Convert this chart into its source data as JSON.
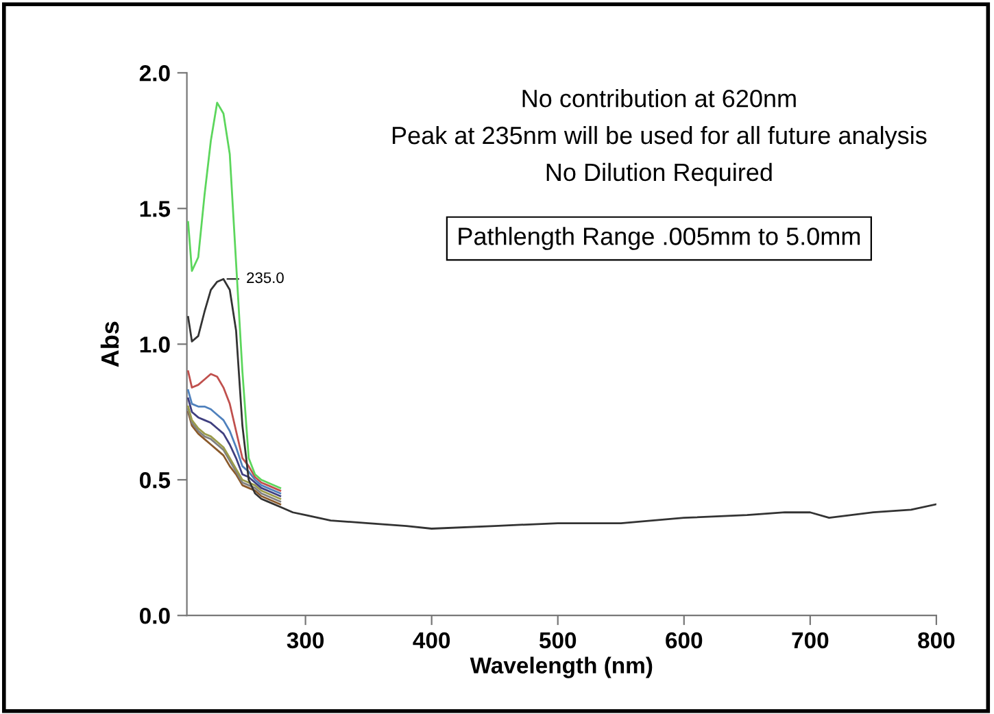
{
  "chart_data": {
    "type": "line",
    "xlabel": "Wavelength (nm)",
    "ylabel": "Abs",
    "x": [
      207,
      210,
      215,
      220,
      225,
      230,
      235,
      240,
      245,
      250,
      255,
      260,
      265,
      270,
      280,
      290,
      300,
      320,
      350,
      380,
      400,
      450,
      500,
      550,
      600,
      650,
      680,
      700,
      715,
      750,
      780,
      800
    ],
    "series": [
      {
        "color": "#5cd65c",
        "values": [
          1.45,
          1.27,
          1.32,
          1.55,
          1.75,
          1.89,
          1.85,
          1.7,
          1.3,
          0.9,
          0.58,
          0.52,
          0.5,
          0.49,
          0.47,
          null,
          null,
          null,
          null,
          null,
          null,
          null,
          null,
          null,
          null,
          null,
          null,
          null,
          null,
          null,
          null,
          null
        ]
      },
      {
        "color": "#333333",
        "values": [
          1.1,
          1.01,
          1.03,
          1.12,
          1.2,
          1.23,
          1.24,
          1.2,
          1.05,
          0.7,
          0.5,
          0.45,
          0.43,
          0.42,
          0.4,
          0.38,
          0.37,
          0.35,
          0.34,
          0.33,
          0.32,
          0.33,
          0.34,
          0.34,
          0.36,
          0.37,
          0.38,
          0.38,
          0.36,
          0.38,
          0.39,
          0.41
        ]
      },
      {
        "color": "#c0504d",
        "values": [
          0.9,
          0.84,
          0.85,
          0.87,
          0.89,
          0.88,
          0.84,
          0.78,
          0.68,
          0.58,
          0.55,
          0.51,
          0.49,
          0.48,
          0.46,
          null,
          null,
          null,
          null,
          null,
          null,
          null,
          null,
          null,
          null,
          null,
          null,
          null,
          null,
          null,
          null,
          null
        ]
      },
      {
        "color": "#4f81bd",
        "values": [
          0.83,
          0.78,
          0.77,
          0.77,
          0.76,
          0.74,
          0.72,
          0.68,
          0.62,
          0.55,
          0.53,
          0.5,
          0.48,
          0.47,
          0.45,
          null,
          null,
          null,
          null,
          null,
          null,
          null,
          null,
          null,
          null,
          null,
          null,
          null,
          null,
          null,
          null,
          null
        ]
      },
      {
        "color": "#3f3f7f",
        "values": [
          0.8,
          0.75,
          0.73,
          0.72,
          0.71,
          0.69,
          0.67,
          0.63,
          0.58,
          0.52,
          0.51,
          0.49,
          0.47,
          0.46,
          0.44,
          null,
          null,
          null,
          null,
          null,
          null,
          null,
          null,
          null,
          null,
          null,
          null,
          null,
          null,
          null,
          null,
          null
        ]
      },
      {
        "color": "#9b9b4a",
        "values": [
          0.77,
          0.72,
          0.69,
          0.67,
          0.66,
          0.64,
          0.62,
          0.58,
          0.54,
          0.5,
          0.49,
          0.48,
          0.46,
          0.45,
          0.43,
          null,
          null,
          null,
          null,
          null,
          null,
          null,
          null,
          null,
          null,
          null,
          null,
          null,
          null,
          null,
          null,
          null
        ]
      },
      {
        "color": "#808080",
        "values": [
          0.76,
          0.71,
          0.68,
          0.66,
          0.65,
          0.63,
          0.61,
          0.57,
          0.53,
          0.49,
          0.48,
          0.47,
          0.45,
          0.44,
          0.42,
          null,
          null,
          null,
          null,
          null,
          null,
          null,
          null,
          null,
          null,
          null,
          null,
          null,
          null,
          null,
          null,
          null
        ]
      },
      {
        "color": "#8b5a2b",
        "values": [
          0.75,
          0.7,
          0.67,
          0.65,
          0.63,
          0.61,
          0.59,
          0.55,
          0.52,
          0.48,
          0.47,
          0.46,
          0.44,
          0.43,
          0.41,
          null,
          null,
          null,
          null,
          null,
          null,
          null,
          null,
          null,
          null,
          null,
          null,
          null,
          null,
          null,
          null,
          null
        ]
      }
    ],
    "xlim": [
      206,
      800
    ],
    "xticks": [
      300,
      400,
      500,
      600,
      700,
      800
    ],
    "ylim": [
      0,
      2.0
    ],
    "yticks": [
      {
        "value": 0,
        "label": "0.0"
      },
      {
        "value": 0.5,
        "label": "0.5"
      },
      {
        "value": 1.0,
        "label": "1.0"
      },
      {
        "value": 1.5,
        "label": "1.5"
      },
      {
        "value": 2.0,
        "label": "2.0"
      }
    ],
    "grid": false,
    "marker": "none",
    "line_style": "solid",
    "annotations": [
      "No contribution at 620nm",
      "Peak at 235nm will be used for all future analysis",
      "No Dilution Required",
      "Pathlength Range .005mm to 5.0mm",
      {
        "text": "235.0",
        "x": 235,
        "y": 1.24
      }
    ]
  }
}
